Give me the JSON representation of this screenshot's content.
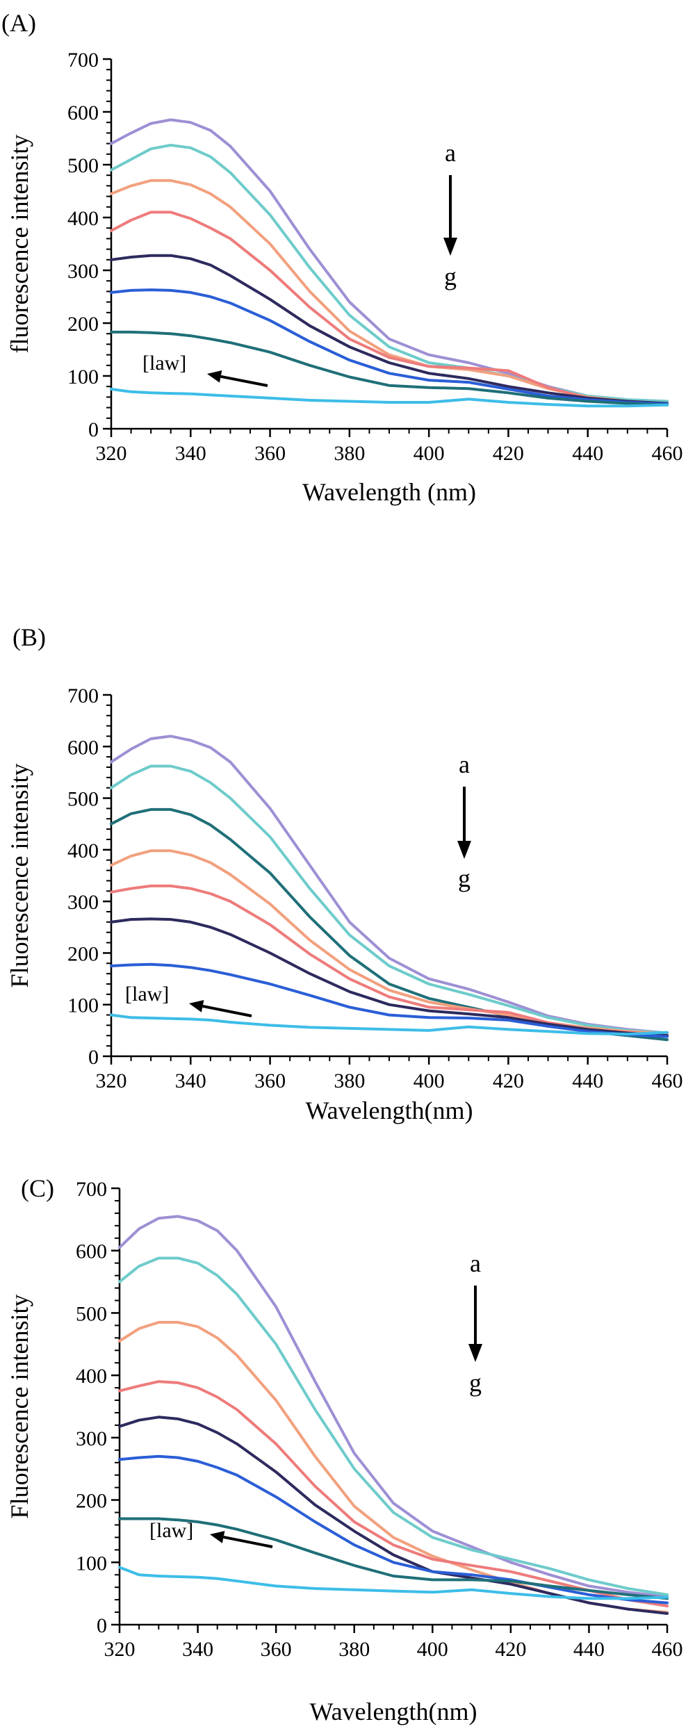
{
  "figure": {
    "background": "#ffffff"
  },
  "chart_data": [
    {
      "panel_label": "(A)",
      "type": "line",
      "xlabel": "Wavelength (nm)",
      "ylabel": "fluorescence intensity",
      "xlim": [
        320,
        460
      ],
      "ylim": [
        0,
        700
      ],
      "xticks": [
        "320",
        "340",
        "360",
        "380",
        "400",
        "420",
        "440",
        "460"
      ],
      "yticks": [
        "0",
        "100",
        "200",
        "300",
        "400",
        "500",
        "600",
        "700"
      ],
      "grid": false,
      "annotations": {
        "top": "a",
        "bottom": "g",
        "law_label": "[law]"
      },
      "series": [
        {
          "color": "#9e8fd4",
          "x": [
            320,
            325,
            330,
            335,
            340,
            345,
            350,
            360,
            370,
            380,
            390,
            400,
            410,
            420,
            430,
            440,
            450,
            460
          ],
          "values": [
            540,
            560,
            578,
            585,
            580,
            565,
            535,
            450,
            340,
            240,
            170,
            140,
            125,
            105,
            80,
            62,
            55,
            52
          ]
        },
        {
          "color": "#6ecbcb",
          "x": [
            320,
            325,
            330,
            335,
            340,
            345,
            350,
            360,
            370,
            380,
            390,
            400,
            410,
            420,
            430,
            440,
            450,
            460
          ],
          "values": [
            490,
            510,
            530,
            537,
            532,
            515,
            485,
            405,
            305,
            215,
            155,
            125,
            115,
            100,
            78,
            62,
            55,
            52
          ]
        },
        {
          "color": "#f2a07e",
          "x": [
            320,
            325,
            330,
            335,
            340,
            345,
            350,
            360,
            370,
            380,
            390,
            400,
            410,
            420,
            430,
            440,
            450,
            460
          ],
          "values": [
            445,
            460,
            470,
            470,
            462,
            445,
            420,
            350,
            260,
            185,
            140,
            118,
            112,
            100,
            76,
            60,
            52,
            48
          ]
        },
        {
          "color": "#ee7b7b",
          "x": [
            320,
            325,
            330,
            335,
            340,
            345,
            350,
            360,
            370,
            380,
            390,
            400,
            410,
            420,
            430,
            440,
            450,
            460
          ],
          "values": [
            375,
            395,
            410,
            410,
            398,
            380,
            360,
            300,
            230,
            170,
            135,
            118,
            115,
            110,
            78,
            58,
            50,
            47
          ]
        },
        {
          "color": "#2d2a5e",
          "x": [
            320,
            325,
            330,
            335,
            340,
            345,
            350,
            360,
            370,
            380,
            390,
            400,
            410,
            420,
            430,
            440,
            450,
            460
          ],
          "values": [
            320,
            325,
            328,
            328,
            322,
            310,
            290,
            245,
            195,
            155,
            125,
            105,
            95,
            80,
            68,
            58,
            52,
            48
          ]
        },
        {
          "color": "#2a5ed6",
          "x": [
            320,
            325,
            330,
            335,
            340,
            345,
            350,
            360,
            370,
            380,
            390,
            400,
            410,
            420,
            430,
            440,
            450,
            460
          ],
          "values": [
            258,
            262,
            263,
            262,
            258,
            250,
            238,
            205,
            165,
            130,
            105,
            92,
            88,
            75,
            62,
            55,
            50,
            47
          ]
        },
        {
          "color": "#1f6f78",
          "x": [
            320,
            325,
            330,
            335,
            340,
            345,
            350,
            360,
            370,
            380,
            390,
            400,
            410,
            420,
            430,
            440,
            450,
            460
          ],
          "values": [
            183,
            183,
            182,
            180,
            176,
            170,
            163,
            145,
            120,
            98,
            82,
            78,
            76,
            68,
            58,
            52,
            48,
            45
          ]
        },
        {
          "color": "#3dbde8",
          "x": [
            320,
            325,
            330,
            335,
            340,
            345,
            350,
            360,
            370,
            380,
            390,
            400,
            410,
            420,
            430,
            440,
            450,
            460
          ],
          "values": [
            75,
            70,
            68,
            67,
            66,
            64,
            62,
            58,
            54,
            52,
            50,
            50,
            56,
            50,
            46,
            43,
            43,
            45
          ]
        }
      ]
    },
    {
      "panel_label": "(B)",
      "type": "line",
      "xlabel": "Wavelength(nm)",
      "ylabel": "Fluorescence intensity",
      "xlim": [
        320,
        460
      ],
      "ylim": [
        0,
        700
      ],
      "xticks": [
        "320",
        "340",
        "360",
        "380",
        "400",
        "420",
        "440",
        "460"
      ],
      "yticks": [
        "0",
        "100",
        "200",
        "300",
        "400",
        "500",
        "600",
        "700"
      ],
      "grid": false,
      "annotations": {
        "top": "a",
        "bottom": "g",
        "law_label": "[law]"
      },
      "series": [
        {
          "color": "#9e8fd4",
          "x": [
            320,
            325,
            330,
            335,
            340,
            345,
            350,
            360,
            370,
            380,
            390,
            400,
            410,
            420,
            430,
            440,
            450,
            460
          ],
          "values": [
            570,
            595,
            615,
            620,
            612,
            598,
            570,
            480,
            370,
            260,
            190,
            150,
            130,
            105,
            78,
            62,
            52,
            45
          ]
        },
        {
          "color": "#6ecbcb",
          "x": [
            320,
            325,
            330,
            335,
            340,
            345,
            350,
            360,
            370,
            380,
            390,
            400,
            410,
            420,
            430,
            440,
            450,
            460
          ],
          "values": [
            520,
            545,
            562,
            562,
            552,
            530,
            500,
            425,
            325,
            235,
            175,
            140,
            120,
            98,
            75,
            60,
            50,
            45
          ]
        },
        {
          "color": "#1f6f78",
          "x": [
            320,
            325,
            330,
            335,
            340,
            345,
            350,
            360,
            370,
            380,
            390,
            400,
            410,
            420,
            430,
            440,
            450,
            460
          ],
          "values": [
            450,
            470,
            478,
            478,
            468,
            448,
            420,
            355,
            270,
            195,
            140,
            112,
            95,
            78,
            60,
            48,
            40,
            32
          ]
        },
        {
          "color": "#f2a07e",
          "x": [
            320,
            325,
            330,
            335,
            340,
            345,
            350,
            360,
            370,
            380,
            390,
            400,
            410,
            420,
            430,
            440,
            450,
            460
          ],
          "values": [
            370,
            388,
            398,
            398,
            390,
            375,
            352,
            295,
            225,
            168,
            128,
            105,
            92,
            80,
            65,
            55,
            48,
            44
          ]
        },
        {
          "color": "#ee7b7b",
          "x": [
            320,
            325,
            330,
            335,
            340,
            345,
            350,
            360,
            370,
            380,
            390,
            400,
            410,
            420,
            430,
            440,
            450,
            460
          ],
          "values": [
            318,
            325,
            330,
            330,
            325,
            315,
            300,
            255,
            198,
            150,
            115,
            95,
            90,
            85,
            65,
            52,
            46,
            42
          ]
        },
        {
          "color": "#2d2a5e",
          "x": [
            320,
            325,
            330,
            335,
            340,
            345,
            350,
            360,
            370,
            380,
            390,
            400,
            410,
            420,
            430,
            440,
            450,
            460
          ],
          "values": [
            260,
            265,
            266,
            265,
            260,
            250,
            236,
            200,
            160,
            125,
            100,
            88,
            82,
            75,
            62,
            52,
            45,
            40
          ]
        },
        {
          "color": "#2a5ed6",
          "x": [
            320,
            325,
            330,
            335,
            340,
            345,
            350,
            360,
            370,
            380,
            390,
            400,
            410,
            420,
            430,
            440,
            450,
            460
          ],
          "values": [
            175,
            177,
            178,
            176,
            172,
            166,
            158,
            140,
            118,
            95,
            80,
            75,
            74,
            70,
            58,
            48,
            42,
            38
          ]
        },
        {
          "color": "#3dbde8",
          "x": [
            320,
            325,
            330,
            335,
            340,
            345,
            350,
            360,
            370,
            380,
            390,
            400,
            410,
            420,
            430,
            440,
            450,
            460
          ],
          "values": [
            80,
            75,
            74,
            73,
            72,
            70,
            66,
            60,
            56,
            54,
            52,
            50,
            57,
            52,
            48,
            44,
            43,
            46
          ]
        }
      ]
    },
    {
      "panel_label": "(C)",
      "type": "line",
      "xlabel": "Wavelength(nm)",
      "ylabel": "Fluorescence intensity",
      "xlim": [
        320,
        460
      ],
      "ylim": [
        0,
        700
      ],
      "xticks": [
        "320",
        "340",
        "360",
        "380",
        "400",
        "420",
        "440",
        "460"
      ],
      "yticks": [
        "0",
        "100",
        "200",
        "300",
        "400",
        "500",
        "600",
        "700"
      ],
      "grid": false,
      "annotations": {
        "top": "a",
        "bottom": "g",
        "law_label": "[law]"
      },
      "series": [
        {
          "color": "#9e8fd4",
          "x": [
            320,
            325,
            330,
            335,
            340,
            345,
            350,
            360,
            370,
            380,
            390,
            400,
            410,
            420,
            430,
            440,
            450,
            460
          ],
          "values": [
            605,
            635,
            652,
            655,
            648,
            632,
            600,
            510,
            390,
            275,
            195,
            150,
            125,
            100,
            80,
            62,
            52,
            45
          ]
        },
        {
          "color": "#6ecbcb",
          "x": [
            320,
            325,
            330,
            335,
            340,
            345,
            350,
            360,
            370,
            380,
            390,
            400,
            410,
            420,
            430,
            440,
            450,
            460
          ],
          "values": [
            550,
            575,
            588,
            588,
            580,
            560,
            530,
            450,
            345,
            250,
            180,
            140,
            120,
            105,
            90,
            72,
            58,
            48
          ]
        },
        {
          "color": "#f2a07e",
          "x": [
            320,
            325,
            330,
            335,
            340,
            345,
            350,
            360,
            370,
            380,
            390,
            400,
            410,
            420,
            430,
            440,
            450,
            460
          ],
          "values": [
            455,
            475,
            485,
            485,
            478,
            460,
            432,
            360,
            270,
            190,
            140,
            110,
            88,
            68,
            50,
            35,
            25,
            20
          ]
        },
        {
          "color": "#ee7b7b",
          "x": [
            320,
            325,
            330,
            335,
            340,
            345,
            350,
            360,
            370,
            380,
            390,
            400,
            410,
            420,
            430,
            440,
            450,
            460
          ],
          "values": [
            375,
            383,
            390,
            388,
            380,
            365,
            345,
            290,
            222,
            165,
            128,
            105,
            95,
            85,
            70,
            55,
            40,
            30
          ]
        },
        {
          "color": "#2d2a5e",
          "x": [
            320,
            325,
            330,
            335,
            340,
            345,
            350,
            360,
            370,
            380,
            390,
            400,
            410,
            420,
            430,
            440,
            450,
            460
          ],
          "values": [
            318,
            328,
            333,
            330,
            322,
            308,
            290,
            245,
            192,
            150,
            112,
            85,
            75,
            65,
            50,
            35,
            25,
            18
          ]
        },
        {
          "color": "#2a5ed6",
          "x": [
            320,
            325,
            330,
            335,
            340,
            345,
            350,
            360,
            370,
            380,
            390,
            400,
            410,
            420,
            430,
            440,
            450,
            460
          ],
          "values": [
            265,
            268,
            270,
            268,
            262,
            252,
            240,
            205,
            165,
            128,
            100,
            85,
            80,
            72,
            60,
            48,
            40,
            35
          ]
        },
        {
          "color": "#1f6f78",
          "x": [
            320,
            325,
            330,
            335,
            340,
            345,
            350,
            360,
            370,
            380,
            390,
            400,
            410,
            420,
            430,
            440,
            450,
            460
          ],
          "values": [
            170,
            170,
            170,
            168,
            165,
            160,
            153,
            136,
            115,
            95,
            78,
            72,
            72,
            70,
            62,
            55,
            48,
            42
          ]
        },
        {
          "color": "#3dbde8",
          "x": [
            320,
            325,
            330,
            335,
            340,
            345,
            350,
            360,
            370,
            380,
            390,
            400,
            410,
            420,
            430,
            440,
            450,
            460
          ],
          "values": [
            92,
            80,
            78,
            77,
            76,
            74,
            70,
            62,
            58,
            56,
            54,
            52,
            56,
            50,
            45,
            42,
            42,
            44
          ]
        }
      ]
    }
  ]
}
